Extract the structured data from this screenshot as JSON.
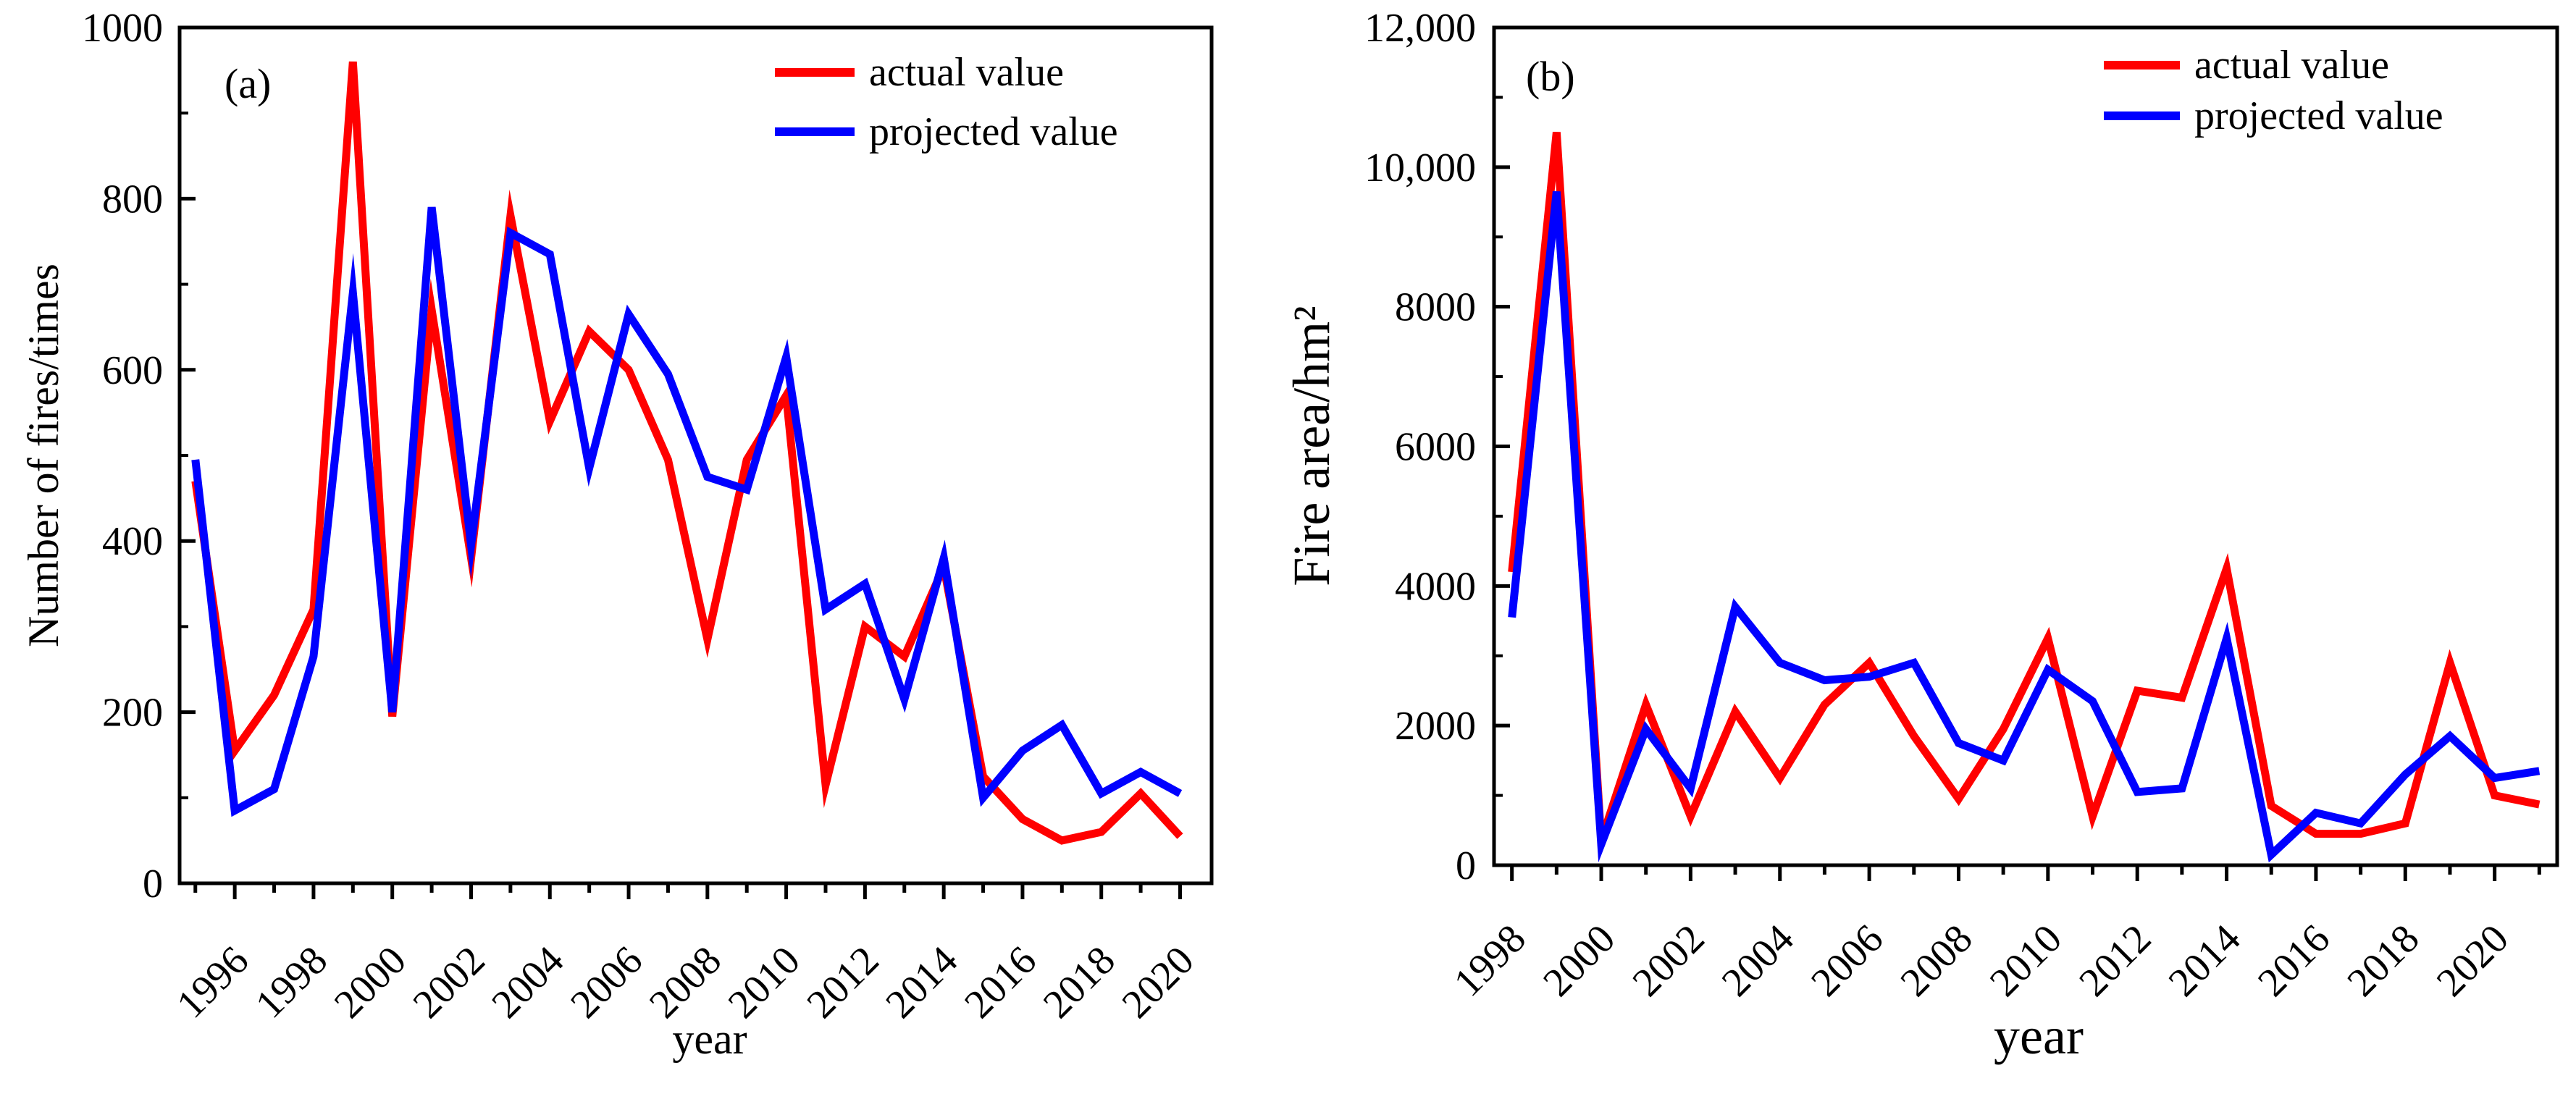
{
  "chart_data": [
    {
      "id": "a",
      "type": "line",
      "panel_label": "(a)",
      "title": "",
      "xlabel": "year",
      "ylabel": "Number of fires/times",
      "xlim": [
        1994.6,
        2020.8
      ],
      "ylim": [
        0,
        1000
      ],
      "x_ticks": [
        1996,
        1998,
        2000,
        2002,
        2004,
        2006,
        2008,
        2010,
        2012,
        2014,
        2016,
        2018,
        2020
      ],
      "x_tick_labels": [
        "1996",
        "1998",
        "2000",
        "2002",
        "2004",
        "2006",
        "2008",
        "2010",
        "2012",
        "2014",
        "2016",
        "2018",
        "2020"
      ],
      "y_ticks": [
        0,
        200,
        400,
        600,
        800,
        1000
      ],
      "y_tick_labels": [
        "0",
        "200",
        "400",
        "600",
        "800",
        "1000"
      ],
      "legend_position": "top-right",
      "x": [
        1995,
        1996,
        1997,
        1998,
        1999,
        2000,
        2001,
        2002,
        2003,
        2004,
        2005,
        2006,
        2007,
        2008,
        2009,
        2010,
        2011,
        2012,
        2013,
        2014,
        2015,
        2016,
        2017,
        2018,
        2019,
        2020
      ],
      "series": [
        {
          "name": "actual value",
          "color": "#ff0000",
          "values": [
            470,
            155,
            220,
            320,
            960,
            195,
            670,
            380,
            780,
            540,
            645,
            600,
            495,
            285,
            495,
            570,
            115,
            300,
            265,
            370,
            125,
            75,
            50,
            60,
            105,
            55
          ]
        },
        {
          "name": "projected value",
          "color": "#0000ff",
          "values": [
            495,
            85,
            110,
            265,
            690,
            200,
            790,
            395,
            760,
            735,
            485,
            665,
            595,
            475,
            460,
            615,
            320,
            350,
            215,
            380,
            100,
            155,
            185,
            105,
            130,
            105
          ]
        }
      ]
    },
    {
      "id": "b",
      "type": "line",
      "panel_label": "(b)",
      "title": "",
      "xlabel": "year",
      "ylabel": "Fire area/hm²",
      "xlim": [
        1997.6,
        2021.4
      ],
      "ylim": [
        0,
        12000
      ],
      "x_ticks": [
        1998,
        2000,
        2002,
        2004,
        2006,
        2008,
        2010,
        2012,
        2014,
        2016,
        2018,
        2020
      ],
      "x_tick_labels": [
        "1998",
        "2000",
        "2002",
        "2004",
        "2006",
        "2008",
        "2010",
        "2012",
        "2014",
        "2016",
        "2018",
        "2020"
      ],
      "y_ticks": [
        0,
        2000,
        4000,
        6000,
        8000,
        10000,
        12000
      ],
      "y_tick_labels": [
        "0",
        "2000",
        "4000",
        "6000",
        "8000",
        "10,000",
        "12,000"
      ],
      "legend_position": "top-right",
      "x": [
        1998,
        1999,
        2000,
        2001,
        2002,
        2003,
        2004,
        2005,
        2006,
        2007,
        2008,
        2009,
        2010,
        2011,
        2012,
        2013,
        2014,
        2015,
        2016,
        2017,
        2018,
        2019,
        2020,
        2021
      ],
      "series": [
        {
          "name": "actual value",
          "color": "#ff0000",
          "values": [
            4200,
            10500,
            350,
            2300,
            700,
            2200,
            1250,
            2300,
            2900,
            1850,
            950,
            1950,
            3250,
            700,
            2500,
            2400,
            4250,
            850,
            450,
            450,
            600,
            2900,
            1000,
            870
          ]
        },
        {
          "name": "projected value",
          "color": "#0000ff",
          "values": [
            3550,
            9650,
            300,
            1950,
            1100,
            3700,
            2900,
            2650,
            2700,
            2900,
            1750,
            1500,
            2800,
            2350,
            1050,
            1100,
            3250,
            150,
            750,
            600,
            1300,
            1850,
            1250,
            1350
          ]
        }
      ]
    }
  ]
}
